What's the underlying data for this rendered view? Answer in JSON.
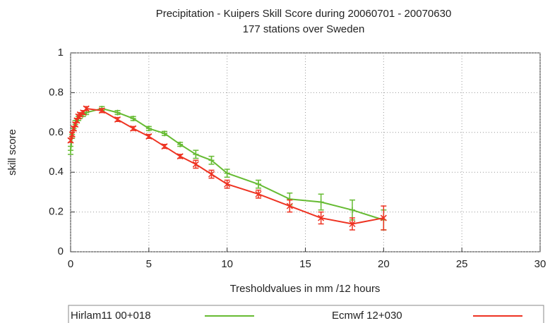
{
  "chart_data": {
    "type": "line",
    "title": "Precipitation - Kuipers Skill Score during 20060701 - 20070630",
    "subtitle": "177 stations over Sweden",
    "x_label": "Tresholdvalues in mm /12 hours",
    "y_label": "skill score",
    "xlim": [
      0,
      30
    ],
    "xticks": [
      0,
      5,
      10,
      15,
      20,
      25,
      30
    ],
    "ylim": [
      0,
      1
    ],
    "yticks": [
      0,
      0.2,
      0.4,
      0.6,
      0.8,
      1
    ],
    "grid": true,
    "legend": "bottom",
    "series": [
      {
        "name": "Hirlam11 00+018",
        "color": "#66bb33",
        "x": [
          0,
          0.1,
          0.2,
          0.3,
          0.4,
          0.5,
          0.6,
          0.8,
          1,
          2,
          3,
          4,
          5,
          6,
          7,
          8,
          9,
          10,
          12,
          14,
          16,
          18,
          20
        ],
        "values": [
          0.51,
          0.58,
          0.62,
          0.65,
          0.66,
          0.67,
          0.68,
          0.69,
          0.7,
          0.72,
          0.7,
          0.67,
          0.62,
          0.595,
          0.54,
          0.49,
          0.46,
          0.395,
          0.34,
          0.265,
          0.25,
          0.21,
          0.16
        ],
        "errors": [
          0.02,
          0.01,
          0.01,
          0.01,
          0.01,
          0.01,
          0.01,
          0.01,
          0.01,
          0.01,
          0.01,
          0.01,
          0.01,
          0.01,
          0.01,
          0.02,
          0.02,
          0.02,
          0.02,
          0.03,
          0.04,
          0.05,
          0.05
        ]
      },
      {
        "name": "Ecmwf 12+030",
        "color": "#ee3322",
        "x": [
          0,
          0.1,
          0.2,
          0.3,
          0.4,
          0.5,
          0.6,
          0.8,
          1,
          2,
          3,
          4,
          5,
          6,
          7,
          8,
          9,
          10,
          12,
          14,
          16,
          18,
          20
        ],
        "values": [
          0.56,
          0.59,
          0.62,
          0.64,
          0.66,
          0.68,
          0.69,
          0.7,
          0.72,
          0.71,
          0.665,
          0.62,
          0.58,
          0.53,
          0.48,
          0.44,
          0.39,
          0.34,
          0.29,
          0.23,
          0.17,
          0.14,
          0.17
        ],
        "errors": [
          0.01,
          0.01,
          0.01,
          0.01,
          0.01,
          0.01,
          0.01,
          0.01,
          0.01,
          0.01,
          0.01,
          0.01,
          0.01,
          0.01,
          0.01,
          0.02,
          0.02,
          0.02,
          0.02,
          0.03,
          0.03,
          0.03,
          0.06
        ]
      }
    ]
  }
}
